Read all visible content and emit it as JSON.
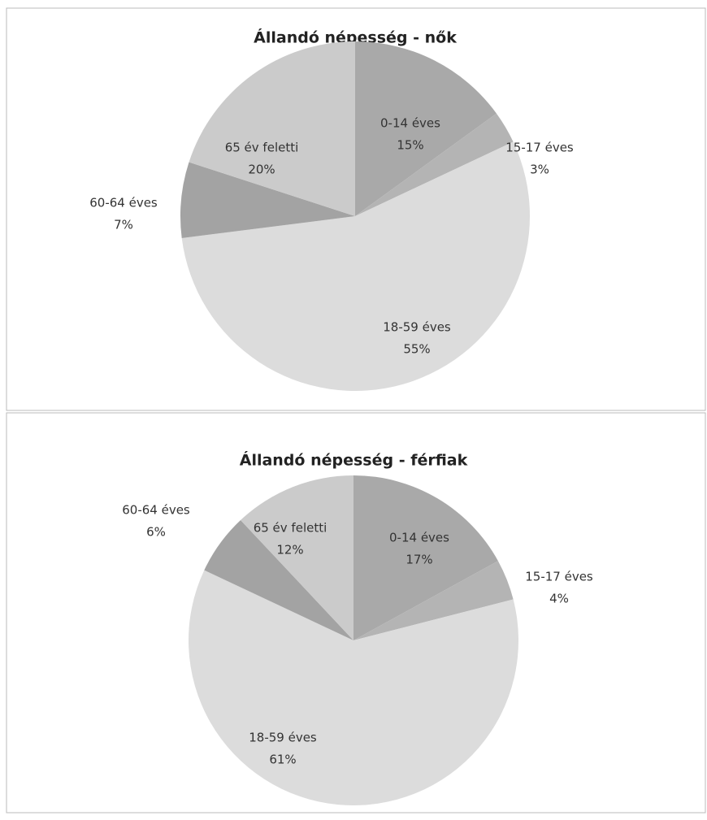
{
  "chart_data": [
    {
      "type": "pie",
      "title": "Állandó népesség - nők",
      "categories": [
        "0-14 éves",
        "15-17 éves",
        "18-59 éves",
        "60-64 éves",
        "65 év feletti"
      ],
      "values": [
        15,
        3,
        55,
        7,
        20
      ],
      "value_labels": [
        "15%",
        "3%",
        "55%",
        "7%",
        "20%"
      ],
      "colors": [
        "#a9a9a9",
        "#b4b4b4",
        "#dcdcdc",
        "#a3a3a3",
        "#cbcbcb"
      ]
    },
    {
      "type": "pie",
      "title": "Állandó népesség - férfiak",
      "categories": [
        "0-14 éves",
        "15-17 éves",
        "18-59 éves",
        "60-64 éves",
        "65 év feletti"
      ],
      "values": [
        17,
        4,
        61,
        6,
        12
      ],
      "value_labels": [
        "17%",
        "4%",
        "61%",
        "6%",
        "12%"
      ],
      "colors": [
        "#a9a9a9",
        "#b4b4b4",
        "#dcdcdc",
        "#a3a3a3",
        "#cbcbcb"
      ]
    }
  ]
}
